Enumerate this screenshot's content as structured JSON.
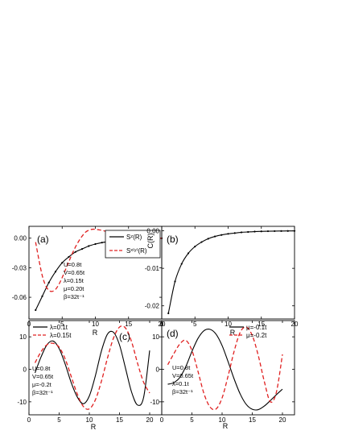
{
  "chart_data": [
    {
      "type": "line",
      "panel_label": "(a)",
      "xlabel": "R",
      "ylabel": "",
      "xlim": [
        0,
        20
      ],
      "ylim": [
        -0.082,
        0.012
      ],
      "xticks": [
        "0",
        "5",
        "10",
        "15",
        "20"
      ],
      "yticks": [
        "0.00",
        "-0.03",
        "-0.06"
      ],
      "annotations": [
        "U=0.8t",
        "V=0.65t",
        "λ=0.15t",
        "μ=0.20t",
        "β=32t⁻¹"
      ],
      "legend_position": "upper-right",
      "series": [
        {
          "name": "Sᶻ(R)",
          "color": "#000000",
          "style": "solid",
          "markers": true,
          "x": [
            1,
            2,
            3,
            4,
            5,
            6,
            7,
            8,
            9,
            10,
            11,
            12,
            13,
            14,
            15,
            16,
            17,
            18,
            19,
            20
          ],
          "y": [
            -0.073,
            -0.059,
            -0.045,
            -0.034,
            -0.025,
            -0.019,
            -0.014,
            -0.011,
            -0.008,
            -0.006,
            -0.0045,
            -0.0035,
            -0.0025,
            -0.0018,
            -0.0012,
            -0.0008,
            -0.0005,
            -0.0003,
            -0.0002,
            -0.0001
          ]
        },
        {
          "name": "Sˣ⁽ʸ⁾(R)",
          "color": "#e02020",
          "style": "dashed",
          "markers": false,
          "x": [
            1,
            1.5,
            2,
            2.5,
            3,
            3.5,
            4,
            4.5,
            5,
            5.5,
            6,
            6.5,
            7,
            7.5,
            8,
            8.5,
            9,
            9.5,
            10,
            10.5,
            11,
            11.5,
            12,
            12.5,
            13,
            13.5,
            14,
            14.5,
            15,
            16,
            17,
            18,
            19,
            20
          ],
          "y": [
            -0.004,
            -0.022,
            -0.038,
            -0.048,
            -0.053,
            -0.054,
            -0.052,
            -0.047,
            -0.04,
            -0.032,
            -0.024,
            -0.016,
            -0.009,
            -0.003,
            0.002,
            0.006,
            0.008,
            0.009,
            0.009,
            0.0085,
            0.008,
            0.007,
            0.006,
            0.005,
            0.004,
            0.003,
            0.002,
            0.0015,
            0.001,
            0.0,
            -0.001,
            -0.001,
            0.0,
            0.0
          ]
        }
      ]
    },
    {
      "type": "line",
      "panel_label": "(b)",
      "xlabel": "R",
      "ylabel": "C(R)",
      "xlim": [
        0,
        20
      ],
      "ylim": [
        -0.0235,
        0.0012
      ],
      "xticks": [
        "0",
        "5",
        "10",
        "15",
        "20"
      ],
      "yticks": [
        "0.00",
        "-0.01",
        "-0.02"
      ],
      "series": [
        {
          "name": "C(R)",
          "color": "#000000",
          "style": "solid",
          "markers": true,
          "x": [
            1,
            2,
            3,
            4,
            5,
            6,
            7,
            8,
            9,
            10,
            11,
            12,
            13,
            14,
            15,
            16,
            17,
            18,
            19,
            20
          ],
          "y": [
            -0.022,
            -0.0135,
            -0.0088,
            -0.006,
            -0.0042,
            -0.003,
            -0.0021,
            -0.0015,
            -0.0011,
            -0.0008,
            -0.0006,
            -0.0004,
            -0.0003,
            -0.0002,
            -0.00015,
            -0.0001,
            -7e-05,
            -5e-05,
            -3e-05,
            -2e-05
          ]
        }
      ]
    },
    {
      "type": "line",
      "panel_label": "(c)",
      "xlabel": "R",
      "ylabel": "",
      "xlim": [
        0,
        22
      ],
      "ylim": [
        -14,
        15
      ],
      "xticks": [
        "0",
        "5",
        "10",
        "15",
        "20"
      ],
      "yticks": [
        "10",
        "0",
        "-10"
      ],
      "annotations": [
        "U=0.8t",
        "V=0.65t",
        "μ=-0.2t",
        "β=32t⁻¹"
      ],
      "legend_position": "upper-left",
      "series": [
        {
          "name": "λ=0.1t",
          "color": "#000000",
          "style": "solid",
          "markers": false,
          "x": [
            1,
            2,
            3,
            4,
            5,
            6,
            7,
            8,
            9,
            10,
            11,
            12,
            13,
            14,
            15,
            16,
            17,
            18,
            19,
            20
          ],
          "y": [
            -1.1,
            3.8,
            7.6,
            8.7,
            6.4,
            1.6,
            -4.1,
            -8.5,
            -10.6,
            -8.2,
            -2.0,
            5.6,
            10.8,
            11.4,
            7.5,
            0.3,
            -7.0,
            -11.0,
            -8.6,
            5.8
          ]
        },
        {
          "name": "λ=0.15t",
          "color": "#e02020",
          "style": "dashed",
          "markers": false,
          "x": [
            1,
            2,
            3,
            4,
            5,
            6,
            7,
            8,
            9,
            10,
            11,
            12,
            13,
            14,
            15,
            16,
            17,
            18,
            19,
            20
          ],
          "y": [
            2.0,
            5.4,
            7.6,
            8.0,
            6.8,
            3.2,
            -2.2,
            -7.6,
            -11.4,
            -12.2,
            -9.4,
            -3.7,
            3.4,
            9.6,
            13.0,
            12.7,
            8.5,
            1.8,
            -4.0,
            -7.3
          ]
        }
      ]
    },
    {
      "type": "line",
      "panel_label": "(d)",
      "xlabel": "R",
      "ylabel": "",
      "xlim": [
        0,
        22
      ],
      "ylim": [
        -14,
        15
      ],
      "xticks": [
        "0",
        "5",
        "10",
        "15",
        "20"
      ],
      "yticks": [
        "10",
        "0",
        "-10"
      ],
      "annotations": [
        "U=0.8t",
        "V=0.65t",
        "λ=0.1t",
        "β=32t⁻¹"
      ],
      "legend_position": "upper-right",
      "series": [
        {
          "name": "μ=-0.1t",
          "color": "#000000",
          "style": "solid",
          "markers": false,
          "x": [
            1,
            2,
            3,
            4,
            5,
            6,
            7,
            8,
            9,
            10,
            11,
            12,
            13,
            14,
            15,
            16,
            17,
            18,
            19,
            20
          ],
          "y": [
            -4.6,
            -4.1,
            -2.5,
            0.9,
            5.5,
            9.5,
            11.9,
            12.3,
            10.8,
            7.3,
            2.3,
            -3.0,
            -7.6,
            -10.8,
            -12.3,
            -12.4,
            -11.3,
            -9.6,
            -7.8,
            -6.1
          ]
        },
        {
          "name": "μ=-0.2t",
          "color": "#e02020",
          "style": "dashed",
          "markers": false,
          "x": [
            1,
            2,
            3,
            4,
            5,
            6,
            7,
            8,
            9,
            10,
            11,
            12,
            13,
            14,
            15,
            16,
            17,
            18,
            19,
            20
          ],
          "y": [
            1.4,
            4.8,
            7.8,
            8.9,
            5.8,
            -0.6,
            -7.5,
            -11.6,
            -12.2,
            -8.8,
            -2.0,
            5.6,
            11.4,
            13.0,
            10.4,
            4.2,
            -3.8,
            -10.0,
            -7.0,
            4.6
          ]
        }
      ]
    }
  ]
}
